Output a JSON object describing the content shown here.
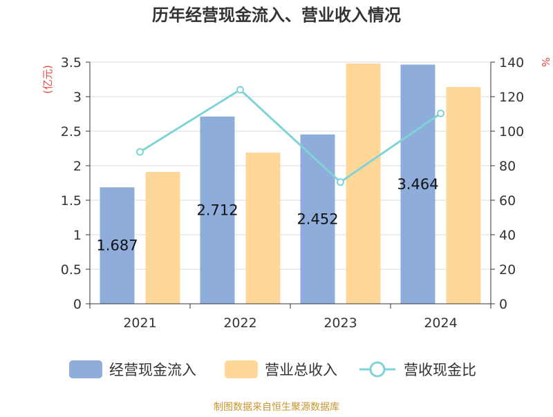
{
  "chart_data": {
    "type": "bar",
    "title": "历年经营现金流入、营业收入情况",
    "categories": [
      "2021",
      "2022",
      "2023",
      "2024"
    ],
    "series": [
      {
        "name": "经营现金流入",
        "type": "bar",
        "axis": "left",
        "values": [
          1.687,
          2.712,
          2.452,
          3.464
        ],
        "color": "#8FADDB"
      },
      {
        "name": "营业总收入",
        "type": "bar",
        "axis": "left",
        "values": [
          1.91,
          2.19,
          3.48,
          3.14
        ],
        "color": "#FFD899"
      },
      {
        "name": "营收现金比",
        "type": "line",
        "axis": "right",
        "values": [
          88,
          124,
          70.5,
          110.3
        ],
        "color": "#7ED3D6"
      }
    ],
    "data_labels": [
      "1.687",
      "2.712",
      "2.452",
      "3.464"
    ],
    "left_axis": {
      "unit": "(亿元)",
      "ylim": [
        0,
        3.5
      ],
      "ticks": [
        "0",
        "0.5",
        "1",
        "1.5",
        "2",
        "2.5",
        "3",
        "3.5"
      ]
    },
    "right_axis": {
      "unit": "%",
      "ylim": [
        0,
        140
      ],
      "ticks": [
        "0",
        "20",
        "40",
        "60",
        "80",
        "100",
        "120",
        "140"
      ]
    },
    "grid": true,
    "legend_position": "bottom",
    "unit_color": "#E8473F"
  },
  "footer": {
    "source": "制图数据来自恒生聚源数据库",
    "source_color": "#C8962F"
  }
}
